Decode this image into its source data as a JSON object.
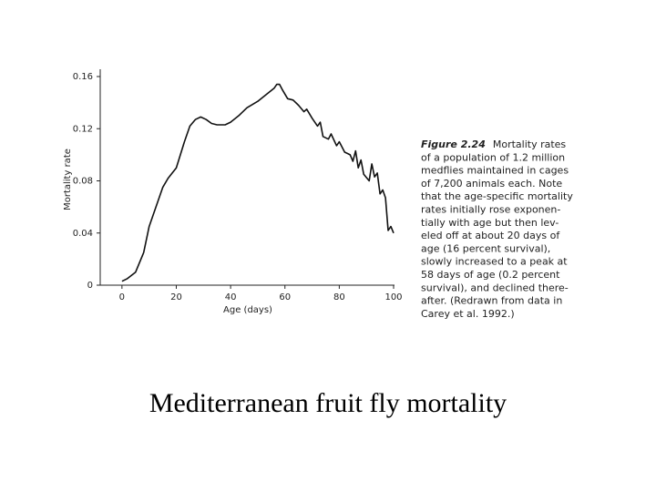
{
  "chart_data": {
    "type": "line",
    "title": "Mediterranean fruit fly mortality",
    "xlabel": "Age (days)",
    "ylabel": "Mortality rate",
    "caption": {
      "label": "Figure 2.24",
      "first_line": "Mortality rates",
      "lines": [
        "of a population of 1.2 million",
        "medflies maintained in cages",
        "of 7,200 animals each. Note",
        "that the age-specific mortality",
        "rates initially rose exponen-",
        "tially with age but then lev-",
        "eled off at about 20 days of",
        "age (16 percent survival),",
        "slowly increased to a peak at",
        "58 days of age (0.2 percent",
        "survival), and declined there-",
        "after. (Redrawn from data in",
        "Carey et al. 1992.)"
      ]
    },
    "x": [
      0,
      2,
      5,
      8,
      10,
      15,
      17,
      20,
      23,
      25,
      27,
      29,
      31,
      33,
      35,
      38,
      40,
      43,
      46,
      50,
      53,
      56,
      57,
      58,
      59,
      61,
      63,
      65,
      67,
      68,
      70,
      72,
      73,
      74,
      76,
      77,
      79,
      80,
      82,
      84,
      85,
      86,
      87,
      88,
      89,
      91,
      92,
      93,
      94,
      95,
      96,
      97,
      98,
      99,
      100
    ],
    "series": [
      {
        "name": "Mortality rate",
        "color": "#111111",
        "values": [
          0.003,
          0.005,
          0.01,
          0.025,
          0.045,
          0.075,
          0.082,
          0.09,
          0.11,
          0.122,
          0.127,
          0.129,
          0.127,
          0.124,
          0.123,
          0.123,
          0.125,
          0.13,
          0.136,
          0.141,
          0.146,
          0.151,
          0.154,
          0.154,
          0.15,
          0.143,
          0.142,
          0.138,
          0.133,
          0.135,
          0.128,
          0.122,
          0.125,
          0.114,
          0.112,
          0.116,
          0.107,
          0.11,
          0.102,
          0.1,
          0.095,
          0.103,
          0.09,
          0.096,
          0.085,
          0.08,
          0.093,
          0.083,
          0.086,
          0.07,
          0.073,
          0.067,
          0.042,
          0.045,
          0.04
        ]
      }
    ],
    "xlim": [
      -8,
      100
    ],
    "xticks": [
      0,
      20,
      40,
      60,
      80,
      100
    ],
    "ylim": [
      0,
      0.16
    ],
    "yticks": [
      0,
      0.04,
      0.08,
      0.12,
      0.16
    ]
  }
}
